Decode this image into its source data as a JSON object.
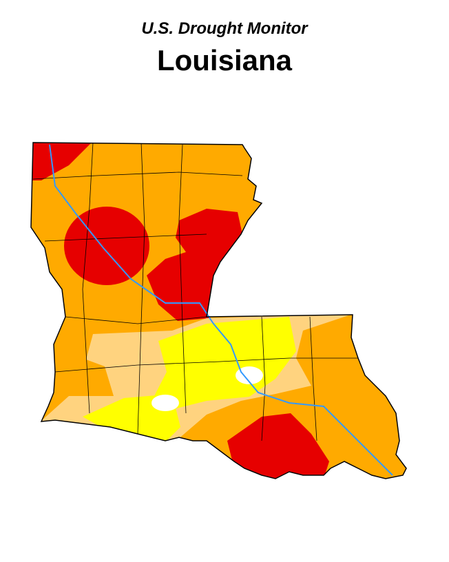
{
  "header": {
    "title": "U.S. Drought Monitor",
    "subtitle": "Louisiana"
  }
}
